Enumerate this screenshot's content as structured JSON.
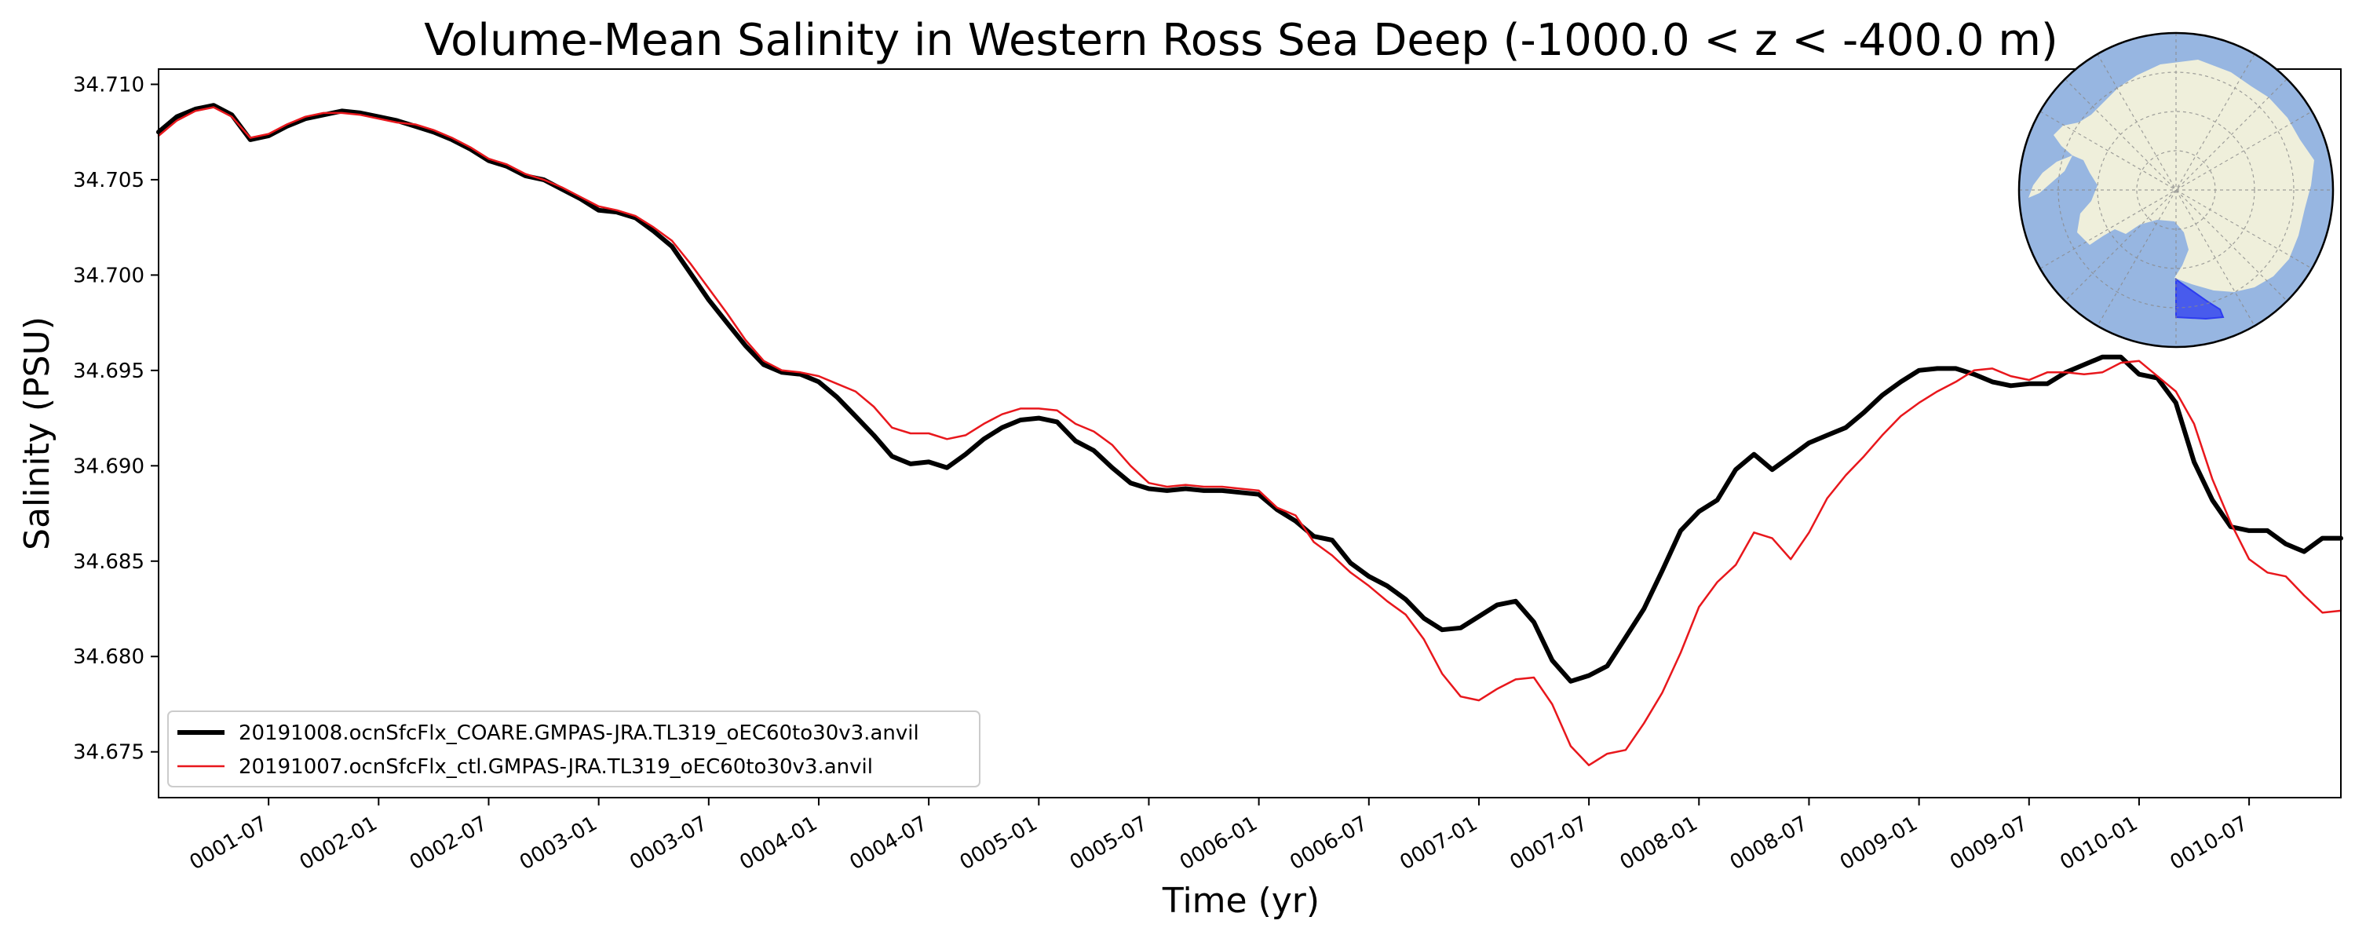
{
  "chart_data": {
    "type": "line",
    "title": "Volume-Mean Salinity in Western Ross Sea Deep (-1000.0 < z < -400.0 m)",
    "xlabel": "Time (yr)",
    "ylabel": "Salinity (PSU)",
    "xlim": [
      0.0,
      9.917
    ],
    "ylim": [
      34.6726,
      34.7108
    ],
    "yticks": [
      {
        "value": 34.675,
        "label": "34.675"
      },
      {
        "value": 34.68,
        "label": "34.680"
      },
      {
        "value": 34.685,
        "label": "34.685"
      },
      {
        "value": 34.69,
        "label": "34.690"
      },
      {
        "value": 34.695,
        "label": "34.695"
      },
      {
        "value": 34.7,
        "label": "34.700"
      },
      {
        "value": 34.705,
        "label": "34.705"
      },
      {
        "value": 34.71,
        "label": "34.710"
      }
    ],
    "xticks": [
      {
        "value": 0.5,
        "label": "0001-07"
      },
      {
        "value": 1.0,
        "label": "0002-01"
      },
      {
        "value": 1.5,
        "label": "0002-07"
      },
      {
        "value": 2.0,
        "label": "0003-01"
      },
      {
        "value": 2.5,
        "label": "0003-07"
      },
      {
        "value": 3.0,
        "label": "0004-01"
      },
      {
        "value": 3.5,
        "label": "0004-07"
      },
      {
        "value": 4.0,
        "label": "0005-01"
      },
      {
        "value": 4.5,
        "label": "0005-07"
      },
      {
        "value": 5.0,
        "label": "0006-01"
      },
      {
        "value": 5.5,
        "label": "0006-07"
      },
      {
        "value": 6.0,
        "label": "0007-01"
      },
      {
        "value": 6.5,
        "label": "0007-07"
      },
      {
        "value": 7.0,
        "label": "0008-01"
      },
      {
        "value": 7.5,
        "label": "0008-07"
      },
      {
        "value": 8.0,
        "label": "0009-01"
      },
      {
        "value": 8.5,
        "label": "0009-07"
      },
      {
        "value": 9.0,
        "label": "0010-01"
      },
      {
        "value": 9.5,
        "label": "0010-07"
      }
    ],
    "legend_position": "lower-left",
    "series": [
      {
        "name": "20191008.ocnSfcFlx_COARE.GMPAS-JRA.TL319_oEC60to30v3.anvil",
        "color": "#000000",
        "line": "thick",
        "points": [
          [
            0.0,
            34.7075
          ],
          [
            0.083,
            34.7083
          ],
          [
            0.167,
            34.7087
          ],
          [
            0.25,
            34.7089
          ],
          [
            0.333,
            34.7084
          ],
          [
            0.417,
            34.7071
          ],
          [
            0.5,
            34.7073
          ],
          [
            0.583,
            34.7078
          ],
          [
            0.667,
            34.7082
          ],
          [
            0.75,
            34.7084
          ],
          [
            0.833,
            34.7086
          ],
          [
            0.917,
            34.7085
          ],
          [
            1.0,
            34.7083
          ],
          [
            1.083,
            34.7081
          ],
          [
            1.167,
            34.7078
          ],
          [
            1.25,
            34.7075
          ],
          [
            1.333,
            34.7071
          ],
          [
            1.417,
            34.7066
          ],
          [
            1.5,
            34.706
          ],
          [
            1.583,
            34.7057
          ],
          [
            1.667,
            34.7052
          ],
          [
            1.75,
            34.705
          ],
          [
            1.833,
            34.7045
          ],
          [
            1.917,
            34.704
          ],
          [
            2.0,
            34.7034
          ],
          [
            2.083,
            34.7033
          ],
          [
            2.167,
            34.703
          ],
          [
            2.25,
            34.7023
          ],
          [
            2.333,
            34.7015
          ],
          [
            2.417,
            34.7001
          ],
          [
            2.5,
            34.6987
          ],
          [
            2.583,
            34.6975
          ],
          [
            2.667,
            34.6963
          ],
          [
            2.75,
            34.6953
          ],
          [
            2.833,
            34.6949
          ],
          [
            2.917,
            34.6948
          ],
          [
            3.0,
            34.6944
          ],
          [
            3.083,
            34.6936
          ],
          [
            3.167,
            34.6926
          ],
          [
            3.25,
            34.6916
          ],
          [
            3.333,
            34.6905
          ],
          [
            3.417,
            34.6901
          ],
          [
            3.5,
            34.6902
          ],
          [
            3.583,
            34.6899
          ],
          [
            3.667,
            34.6906
          ],
          [
            3.75,
            34.6914
          ],
          [
            3.833,
            34.692
          ],
          [
            3.917,
            34.6924
          ],
          [
            4.0,
            34.6925
          ],
          [
            4.083,
            34.6923
          ],
          [
            4.167,
            34.6913
          ],
          [
            4.25,
            34.6908
          ],
          [
            4.333,
            34.6899
          ],
          [
            4.417,
            34.6891
          ],
          [
            4.5,
            34.6888
          ],
          [
            4.583,
            34.6887
          ],
          [
            4.667,
            34.6888
          ],
          [
            4.75,
            34.6887
          ],
          [
            4.833,
            34.6887
          ],
          [
            4.917,
            34.6886
          ],
          [
            5.0,
            34.6885
          ],
          [
            5.083,
            34.6877
          ],
          [
            5.167,
            34.6871
          ],
          [
            5.25,
            34.6863
          ],
          [
            5.333,
            34.6861
          ],
          [
            5.417,
            34.6849
          ],
          [
            5.5,
            34.6842
          ],
          [
            5.583,
            34.6837
          ],
          [
            5.667,
            34.683
          ],
          [
            5.75,
            34.682
          ],
          [
            5.833,
            34.6814
          ],
          [
            5.917,
            34.6815
          ],
          [
            6.0,
            34.6821
          ],
          [
            6.083,
            34.6827
          ],
          [
            6.167,
            34.6829
          ],
          [
            6.25,
            34.6818
          ],
          [
            6.333,
            34.6798
          ],
          [
            6.417,
            34.6787
          ],
          [
            6.5,
            34.679
          ],
          [
            6.583,
            34.6795
          ],
          [
            6.667,
            34.681
          ],
          [
            6.75,
            34.6825
          ],
          [
            6.833,
            34.6845
          ],
          [
            6.917,
            34.6866
          ],
          [
            7.0,
            34.6876
          ],
          [
            7.083,
            34.6882
          ],
          [
            7.167,
            34.6898
          ],
          [
            7.25,
            34.6906
          ],
          [
            7.333,
            34.6898
          ],
          [
            7.417,
            34.6905
          ],
          [
            7.5,
            34.6912
          ],
          [
            7.583,
            34.6916
          ],
          [
            7.667,
            34.692
          ],
          [
            7.75,
            34.6928
          ],
          [
            7.833,
            34.6937
          ],
          [
            7.917,
            34.6944
          ],
          [
            8.0,
            34.695
          ],
          [
            8.083,
            34.6951
          ],
          [
            8.167,
            34.6951
          ],
          [
            8.25,
            34.6948
          ],
          [
            8.333,
            34.6944
          ],
          [
            8.417,
            34.6942
          ],
          [
            8.5,
            34.6943
          ],
          [
            8.583,
            34.6943
          ],
          [
            8.667,
            34.6949
          ],
          [
            8.75,
            34.6953
          ],
          [
            8.833,
            34.6957
          ],
          [
            8.917,
            34.6957
          ],
          [
            9.0,
            34.6948
          ],
          [
            9.083,
            34.6946
          ],
          [
            9.167,
            34.6933
          ],
          [
            9.25,
            34.6902
          ],
          [
            9.333,
            34.6882
          ],
          [
            9.417,
            34.6868
          ],
          [
            9.5,
            34.6866
          ],
          [
            9.583,
            34.6866
          ],
          [
            9.667,
            34.6859
          ],
          [
            9.75,
            34.6855
          ],
          [
            9.833,
            34.6862
          ],
          [
            9.917,
            34.6862
          ]
        ]
      },
      {
        "name": "20191007.ocnSfcFlx_ctl.GMPAS-JRA.TL319_oEC60to30v3.anvil",
        "color": "#e8171c",
        "line": "thin",
        "points": [
          [
            0.0,
            34.7073
          ],
          [
            0.083,
            34.7081
          ],
          [
            0.167,
            34.7086
          ],
          [
            0.25,
            34.7088
          ],
          [
            0.333,
            34.7083
          ],
          [
            0.417,
            34.7072
          ],
          [
            0.5,
            34.7074
          ],
          [
            0.583,
            34.7079
          ],
          [
            0.667,
            34.7083
          ],
          [
            0.75,
            34.7085
          ],
          [
            0.833,
            34.7085
          ],
          [
            0.917,
            34.7084
          ],
          [
            1.0,
            34.7082
          ],
          [
            1.083,
            34.708
          ],
          [
            1.167,
            34.7079
          ],
          [
            1.25,
            34.7076
          ],
          [
            1.333,
            34.7072
          ],
          [
            1.417,
            34.7067
          ],
          [
            1.5,
            34.7061
          ],
          [
            1.583,
            34.7058
          ],
          [
            1.667,
            34.7053
          ],
          [
            1.75,
            34.705
          ],
          [
            1.833,
            34.7046
          ],
          [
            1.917,
            34.7041
          ],
          [
            2.0,
            34.7036
          ],
          [
            2.083,
            34.7034
          ],
          [
            2.167,
            34.7031
          ],
          [
            2.25,
            34.7025
          ],
          [
            2.333,
            34.7018
          ],
          [
            2.417,
            34.7006
          ],
          [
            2.5,
            34.6993
          ],
          [
            2.583,
            34.698
          ],
          [
            2.667,
            34.6966
          ],
          [
            2.75,
            34.6955
          ],
          [
            2.833,
            34.695
          ],
          [
            2.917,
            34.6949
          ],
          [
            3.0,
            34.6947
          ],
          [
            3.083,
            34.6943
          ],
          [
            3.167,
            34.6939
          ],
          [
            3.25,
            34.6931
          ],
          [
            3.333,
            34.692
          ],
          [
            3.417,
            34.6917
          ],
          [
            3.5,
            34.6917
          ],
          [
            3.583,
            34.6914
          ],
          [
            3.667,
            34.6916
          ],
          [
            3.75,
            34.6922
          ],
          [
            3.833,
            34.6927
          ],
          [
            3.917,
            34.693
          ],
          [
            4.0,
            34.693
          ],
          [
            4.083,
            34.6929
          ],
          [
            4.167,
            34.6922
          ],
          [
            4.25,
            34.6918
          ],
          [
            4.333,
            34.6911
          ],
          [
            4.417,
            34.69
          ],
          [
            4.5,
            34.6891
          ],
          [
            4.583,
            34.6889
          ],
          [
            4.667,
            34.689
          ],
          [
            4.75,
            34.6889
          ],
          [
            4.833,
            34.6889
          ],
          [
            4.917,
            34.6888
          ],
          [
            5.0,
            34.6887
          ],
          [
            5.083,
            34.6878
          ],
          [
            5.167,
            34.6874
          ],
          [
            5.25,
            34.686
          ],
          [
            5.333,
            34.6853
          ],
          [
            5.417,
            34.6844
          ],
          [
            5.5,
            34.6837
          ],
          [
            5.583,
            34.6829
          ],
          [
            5.667,
            34.6822
          ],
          [
            5.75,
            34.6809
          ],
          [
            5.833,
            34.6791
          ],
          [
            5.917,
            34.6779
          ],
          [
            6.0,
            34.6777
          ],
          [
            6.083,
            34.6783
          ],
          [
            6.167,
            34.6788
          ],
          [
            6.25,
            34.6789
          ],
          [
            6.333,
            34.6775
          ],
          [
            6.417,
            34.6753
          ],
          [
            6.5,
            34.6743
          ],
          [
            6.583,
            34.6749
          ],
          [
            6.667,
            34.6751
          ],
          [
            6.75,
            34.6765
          ],
          [
            6.833,
            34.6781
          ],
          [
            6.917,
            34.6802
          ],
          [
            7.0,
            34.6826
          ],
          [
            7.083,
            34.6839
          ],
          [
            7.167,
            34.6848
          ],
          [
            7.25,
            34.6865
          ],
          [
            7.333,
            34.6862
          ],
          [
            7.417,
            34.6851
          ],
          [
            7.5,
            34.6865
          ],
          [
            7.583,
            34.6883
          ],
          [
            7.667,
            34.6895
          ],
          [
            7.75,
            34.6905
          ],
          [
            7.833,
            34.6916
          ],
          [
            7.917,
            34.6926
          ],
          [
            8.0,
            34.6933
          ],
          [
            8.083,
            34.6939
          ],
          [
            8.167,
            34.6944
          ],
          [
            8.25,
            34.695
          ],
          [
            8.333,
            34.6951
          ],
          [
            8.417,
            34.6947
          ],
          [
            8.5,
            34.6945
          ],
          [
            8.583,
            34.6949
          ],
          [
            8.667,
            34.6949
          ],
          [
            8.75,
            34.6948
          ],
          [
            8.833,
            34.6949
          ],
          [
            8.917,
            34.6954
          ],
          [
            9.0,
            34.6955
          ],
          [
            9.083,
            34.6947
          ],
          [
            9.167,
            34.6939
          ],
          [
            9.25,
            34.6922
          ],
          [
            9.333,
            34.6893
          ],
          [
            9.417,
            34.687
          ],
          [
            9.5,
            34.6851
          ],
          [
            9.583,
            34.6844
          ],
          [
            9.667,
            34.6842
          ],
          [
            9.75,
            34.6832
          ],
          [
            9.833,
            34.6823
          ],
          [
            9.917,
            34.6824
          ]
        ]
      }
    ],
    "inset_map": {
      "description_name": "antarctica-polar-stereographic-inset",
      "ocean_color": "#97b6e1",
      "land_color": "#efefdb",
      "region_color": "#2d3cf0"
    }
  }
}
